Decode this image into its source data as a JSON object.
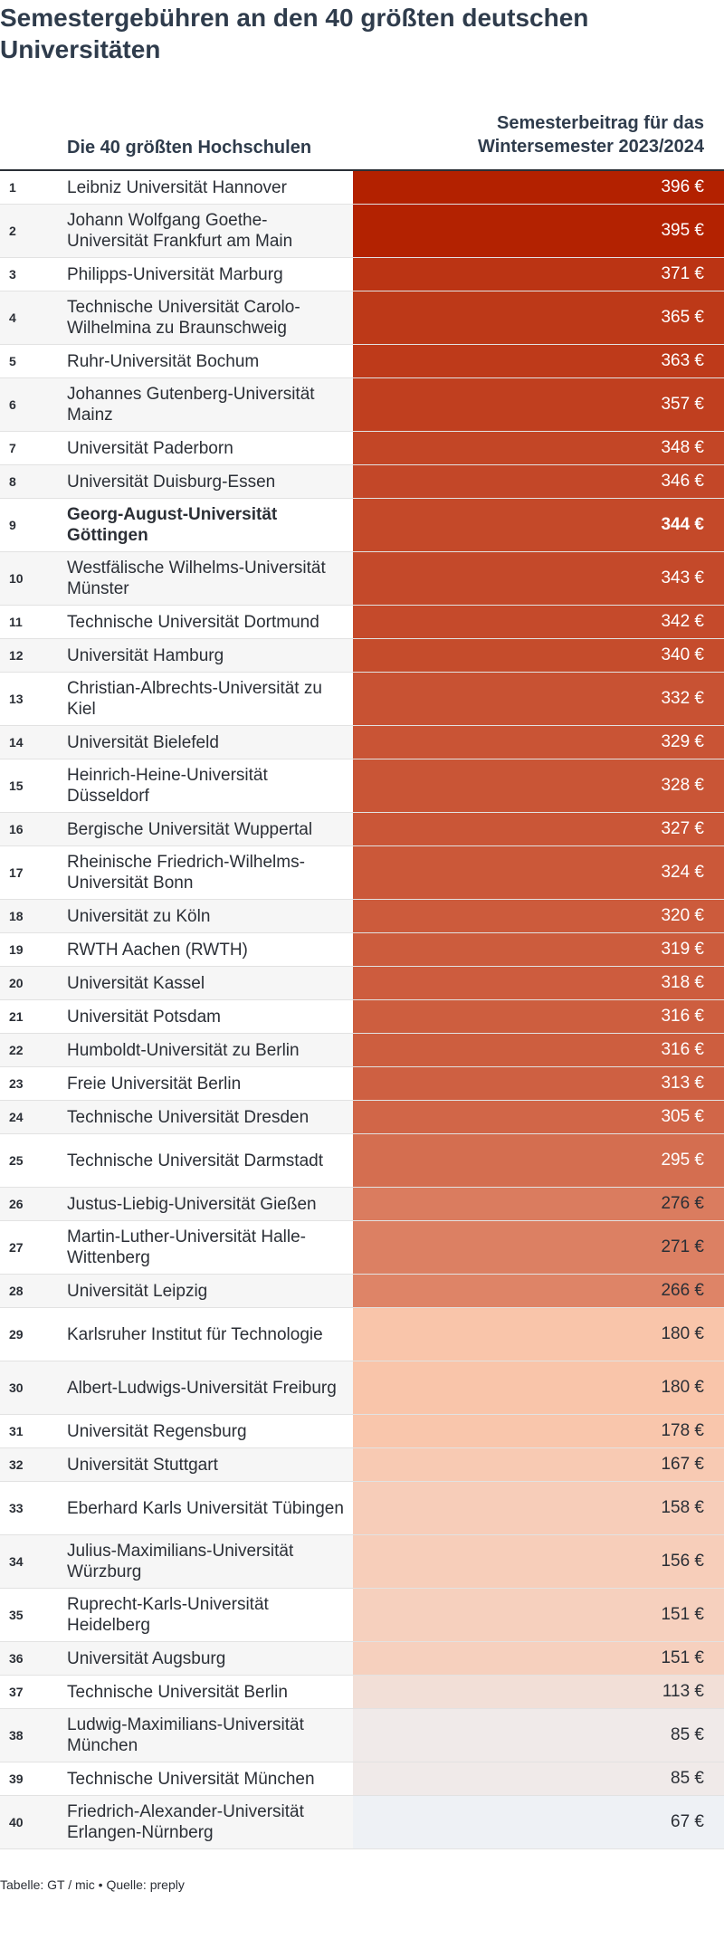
{
  "title": "Semestergebühren an den 40 größten deutschen Universitäten",
  "header": {
    "col_name": "Die 40 größten Hochschulen",
    "col_value": "Semesterbeitrag für das\nWintersemester 2023/2024"
  },
  "footer": "Tabelle: GT / mic • Quelle: preply",
  "unit": "€",
  "chart_data": {
    "type": "table",
    "title": "Semestergebühren an den 40 größten deutschen Universitäten",
    "columns": [
      "Die 40 größten Hochschulen",
      "Semesterbeitrag für das Wintersemester 2023/2024"
    ],
    "unit": "€",
    "highlight_rank": 9,
    "rows": [
      {
        "rank": "1",
        "name": "Leibniz Universität Hannover",
        "value": 396
      },
      {
        "rank": "2",
        "name": "Johann Wolfgang Goethe-Universität Frankfurt am Main",
        "value": 395
      },
      {
        "rank": "3",
        "name": "Philipps-Universität Marburg",
        "value": 371
      },
      {
        "rank": "4",
        "name": "Technische Universität Carolo-Wilhelmina zu Braunschweig",
        "value": 365
      },
      {
        "rank": "5",
        "name": "Ruhr-Universität Bochum",
        "value": 363
      },
      {
        "rank": "6",
        "name": "Johannes Gutenberg-Universität Mainz",
        "value": 357
      },
      {
        "rank": "7",
        "name": "Universität Paderborn",
        "value": 348
      },
      {
        "rank": "8",
        "name": "Universität Duisburg-Essen",
        "value": 346
      },
      {
        "rank": "9",
        "name": "Georg-August-Universität Göttingen",
        "value": 344
      },
      {
        "rank": "10",
        "name": "Westfälische Wilhelms-Universität Münster",
        "value": 343
      },
      {
        "rank": "11",
        "name": "Technische Universität Dortmund",
        "value": 342
      },
      {
        "rank": "12",
        "name": "Universität Hamburg",
        "value": 340
      },
      {
        "rank": "13",
        "name": "Christian-Albrechts-Universität zu Kiel",
        "value": 332
      },
      {
        "rank": "14",
        "name": "Universität Bielefeld",
        "value": 329
      },
      {
        "rank": "15",
        "name": "Heinrich-Heine-Universität Düsseldorf",
        "value": 328
      },
      {
        "rank": "16",
        "name": "Bergische Universität Wuppertal",
        "value": 327
      },
      {
        "rank": "17",
        "name": "Rheinische Friedrich-Wilhelms-Universität Bonn",
        "value": 324
      },
      {
        "rank": "18",
        "name": "Universität zu Köln",
        "value": 320
      },
      {
        "rank": "19",
        "name": "RWTH Aachen (RWTH)",
        "value": 319
      },
      {
        "rank": "20",
        "name": "Universität Kassel",
        "value": 318
      },
      {
        "rank": "21",
        "name": "Universität Potsdam",
        "value": 316
      },
      {
        "rank": "22",
        "name": "Humboldt-Universität zu Berlin",
        "value": 316
      },
      {
        "rank": "23",
        "name": "Freie Universität Berlin",
        "value": 313
      },
      {
        "rank": "24",
        "name": "Technische Universität Dresden",
        "value": 305
      },
      {
        "rank": "25",
        "name": "Technische Universität Darmstadt",
        "value": 295
      },
      {
        "rank": "26",
        "name": "Justus-Liebig-Universität Gießen",
        "value": 276
      },
      {
        "rank": "27",
        "name": "Martin-Luther-Universität Halle-Wittenberg",
        "value": 271
      },
      {
        "rank": "28",
        "name": "Universität Leipzig",
        "value": 266
      },
      {
        "rank": "29",
        "name": "Karlsruher Institut für Technologie",
        "value": 180
      },
      {
        "rank": "30",
        "name": "Albert-Ludwigs-Universität Freiburg",
        "value": 180
      },
      {
        "rank": "31",
        "name": "Universität Regensburg",
        "value": 178
      },
      {
        "rank": "32",
        "name": "Universität Stuttgart",
        "value": 167
      },
      {
        "rank": "33",
        "name": "Eberhard Karls Universität Tübingen",
        "value": 158
      },
      {
        "rank": "34",
        "name": "Julius-Maximilians-Universität Würzburg",
        "value": 156
      },
      {
        "rank": "35",
        "name": "Ruprecht-Karls-Universität Heidelberg",
        "value": 151
      },
      {
        "rank": "36",
        "name": "Universität Augsburg",
        "value": 151
      },
      {
        "rank": "37",
        "name": "Technische Universität Berlin",
        "value": 113
      },
      {
        "rank": "38",
        "name": "Ludwig-Maximilians-Universität München",
        "value": 85
      },
      {
        "rank": "39",
        "name": "Technische Universität München",
        "value": 85
      },
      {
        "rank": "40",
        "name": "Friedrich-Alexander-Universität Erlangen-Nürnberg",
        "value": 67
      }
    ],
    "color_scale": {
      "low_color": "#eef1f5",
      "mid_color": "#f9c4a9",
      "high_color": "#b32100",
      "min": 67,
      "max": 396
    }
  }
}
